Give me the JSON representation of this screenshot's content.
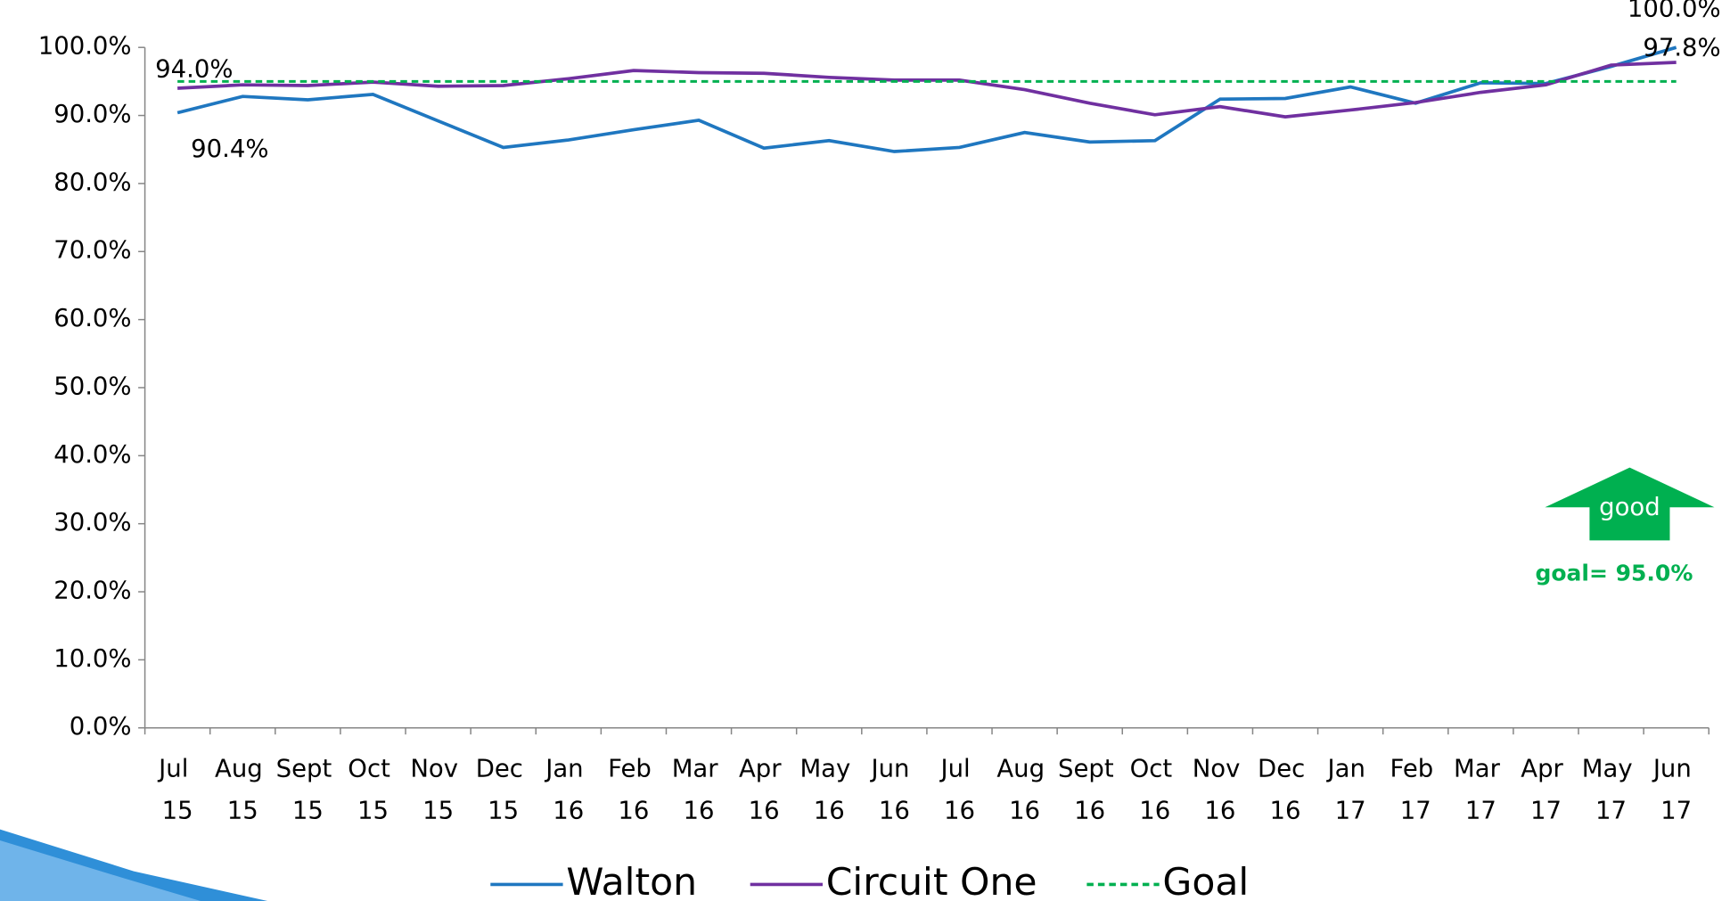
{
  "chart_data": {
    "type": "line",
    "categories": [
      "Jul 15",
      "Aug 15",
      "Sept 15",
      "Oct 15",
      "Nov 15",
      "Dec 15",
      "Jan 16",
      "Feb 16",
      "Mar 16",
      "Apr 16",
      "May 16",
      "Jun 16",
      "Jul 16",
      "Aug 16",
      "Sept 16",
      "Oct 16",
      "Nov 16",
      "Dec 16",
      "Jan 17",
      "Feb 17",
      "Mar 17",
      "Apr 17",
      "May 17",
      "Jun 17"
    ],
    "series": [
      {
        "name": "Walton",
        "color": "#1f77c0",
        "values": [
          90.4,
          92.8,
          92.3,
          93.1,
          89.2,
          85.3,
          86.4,
          87.9,
          89.3,
          85.2,
          86.3,
          84.7,
          85.3,
          87.5,
          86.1,
          86.3,
          92.4,
          92.5,
          94.2,
          91.8,
          94.8,
          94.7,
          97.2,
          100.0
        ],
        "value_labels": [
          "90.4%",
          null,
          null,
          null,
          null,
          null,
          null,
          null,
          null,
          null,
          null,
          null,
          null,
          null,
          null,
          null,
          null,
          null,
          null,
          null,
          null,
          null,
          null,
          "100.0%"
        ]
      },
      {
        "name": "Circuit One",
        "color": "#7030a0",
        "values": [
          94.0,
          94.5,
          94.4,
          94.9,
          94.3,
          94.4,
          95.4,
          96.6,
          96.3,
          96.2,
          95.6,
          95.2,
          95.2,
          93.8,
          91.8,
          90.1,
          91.3,
          89.8,
          90.8,
          91.9,
          93.4,
          94.5,
          97.4,
          97.8
        ],
        "value_labels": [
          "94.0%",
          null,
          null,
          null,
          null,
          null,
          null,
          null,
          null,
          null,
          null,
          null,
          null,
          null,
          null,
          null,
          null,
          null,
          null,
          null,
          null,
          null,
          null,
          "97.8%"
        ]
      },
      {
        "name": "Goal",
        "color": "#00b050",
        "dashed": true,
        "values": [
          95,
          95,
          95,
          95,
          95,
          95,
          95,
          95,
          95,
          95,
          95,
          95,
          95,
          95,
          95,
          95,
          95,
          95,
          95,
          95,
          95,
          95,
          95,
          95
        ]
      }
    ],
    "ylim": [
      0,
      100
    ],
    "yticks": [
      {
        "value": 0,
        "label": "0.0%"
      },
      {
        "value": 10,
        "label": "10.0%"
      },
      {
        "value": 20,
        "label": "20.0%"
      },
      {
        "value": 30,
        "label": "30.0%"
      },
      {
        "value": 40,
        "label": "40.0%"
      },
      {
        "value": 50,
        "label": "50.0%"
      },
      {
        "value": 60,
        "label": "60.0%"
      },
      {
        "value": 70,
        "label": "70.0%"
      },
      {
        "value": 80,
        "label": "80.0%"
      },
      {
        "value": 90,
        "label": "90.0%"
      },
      {
        "value": 100,
        "label": "100.0%"
      }
    ],
    "annotations": [
      "good",
      "goal= 95.0%"
    ],
    "legend": "bottom"
  }
}
